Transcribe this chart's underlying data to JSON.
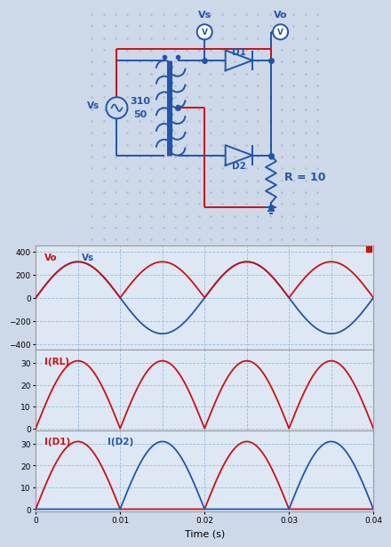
{
  "bg_color": "#cdd8e8",
  "dot_color": "#aab8cc",
  "blue": "#2255aa",
  "red": "#cc1111",
  "plot_bg": "#dde8f4",
  "grid_color": "#99bbdd",
  "plot1_ylabel_vals": [
    -400,
    -200,
    0,
    200,
    400
  ],
  "plot2_ylabel_vals": [
    0,
    10,
    20,
    30
  ],
  "plot3_ylabel_vals": [
    0,
    10,
    20,
    30
  ],
  "xlim": [
    0,
    0.04
  ],
  "xticks": [
    0,
    0.01,
    0.02,
    0.03,
    0.04
  ],
  "xlabel": "Time (s)",
  "amplitude_vs": 310,
  "frequency": 50,
  "R": 10
}
